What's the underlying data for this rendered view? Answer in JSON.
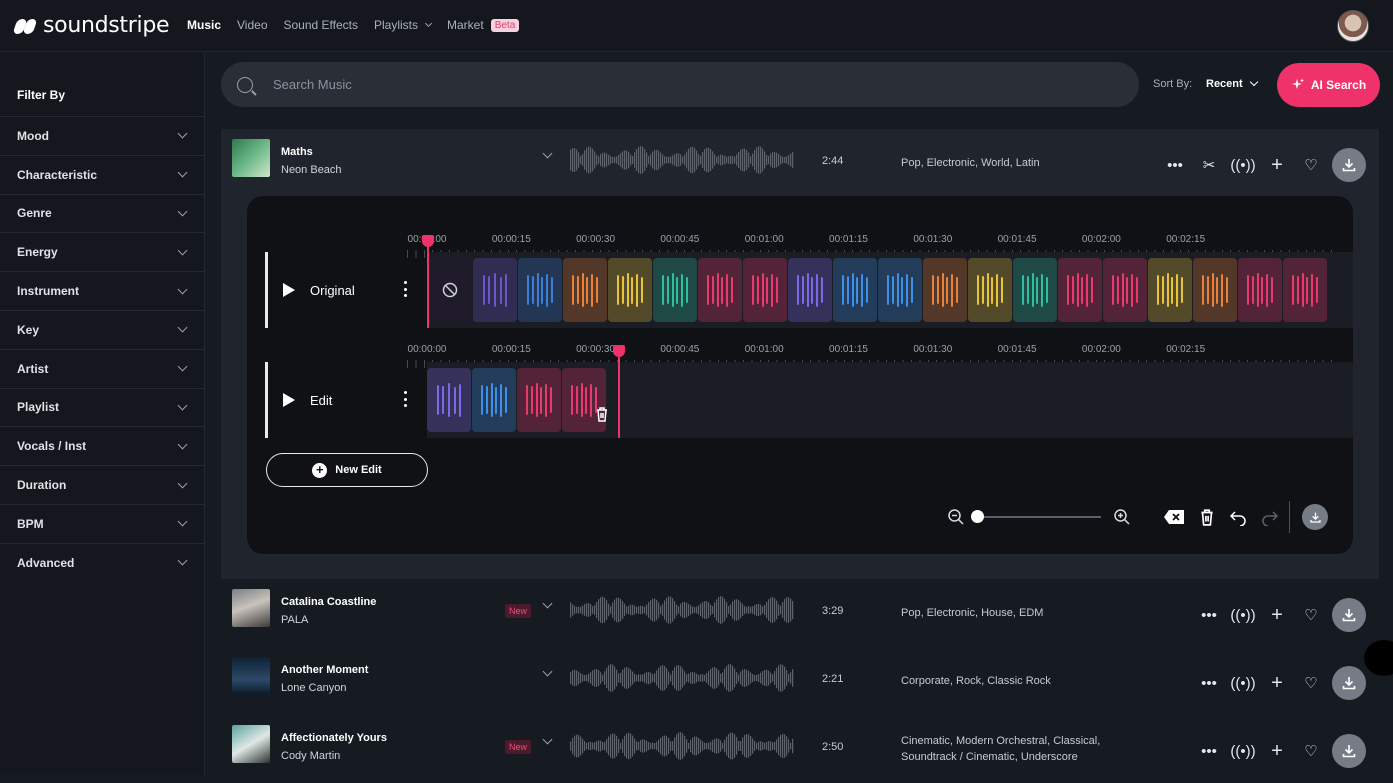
{
  "brand": {
    "name": "soundstripe"
  },
  "nav": [
    {
      "label": "Music",
      "active": true
    },
    {
      "label": "Video"
    },
    {
      "label": "Sound Effects"
    },
    {
      "label": "Playlists",
      "dropdown": true
    },
    {
      "label": "Market",
      "badge": "Beta"
    }
  ],
  "sidebar": {
    "title": "Filter By",
    "filters": [
      "Mood",
      "Characteristic",
      "Genre",
      "Energy",
      "Instrument",
      "Key",
      "Artist",
      "Playlist",
      "Vocals / Inst",
      "Duration",
      "BPM",
      "Advanced"
    ]
  },
  "search": {
    "placeholder": "Search Music"
  },
  "sort": {
    "label": "Sort By:",
    "value": "Recent"
  },
  "ai_search": {
    "label": "AI Search"
  },
  "tracks": [
    {
      "title": "Maths",
      "artist": "Neon Beach",
      "duration": "2:44",
      "tags": "Pop, Electronic, World, Latin",
      "new": false
    },
    {
      "title": "Catalina Coastline",
      "artist": "PALA",
      "duration": "3:29",
      "tags": "Pop, Electronic, House, EDM",
      "new": true,
      "badge": "New"
    },
    {
      "title": "Another Moment",
      "artist": "Lone Canyon",
      "duration": "2:21",
      "tags": "Corporate, Rock, Classic Rock",
      "new": false
    },
    {
      "title": "Affectionately Yours",
      "artist": "Cody Martin",
      "duration": "2:50",
      "tags": "Cinematic, Modern Orchestral, Classical, Soundtrack / Cinematic, Underscore",
      "new": true,
      "badge": "New"
    }
  ],
  "editor": {
    "ruler_labels": [
      "00:00:00",
      "00:00:15",
      "00:00:30",
      "00:00:45",
      "00:01:00",
      "00:01:15",
      "00:01:30",
      "00:01:45",
      "00:02:00",
      "00:02:15"
    ],
    "lanes": [
      {
        "name": "Original"
      },
      {
        "name": "Edit"
      }
    ],
    "new_edit_label": "New Edit",
    "original_segments": [
      "#6e55c8",
      "#3d7fd8",
      "#e8823a",
      "#e8c23a",
      "#2fbf9f",
      "#e83a6e",
      "#e83a6e",
      "#7a6ae8",
      "#3d8fe8",
      "#3d8fe8",
      "#e8823a",
      "#e8c23a",
      "#2fbf9f",
      "#e83a6e",
      "#e83a6e",
      "#e8c23a",
      "#e8823a",
      "#e83a6e",
      "#e83a6e"
    ],
    "edit_segments": [
      "#7a6ae8",
      "#3d8fe8",
      "#e83a6e",
      "#e83a6e"
    ]
  },
  "colors": {
    "accent": "#f0326b",
    "panel": "#20242c",
    "bg": "#161a21"
  }
}
